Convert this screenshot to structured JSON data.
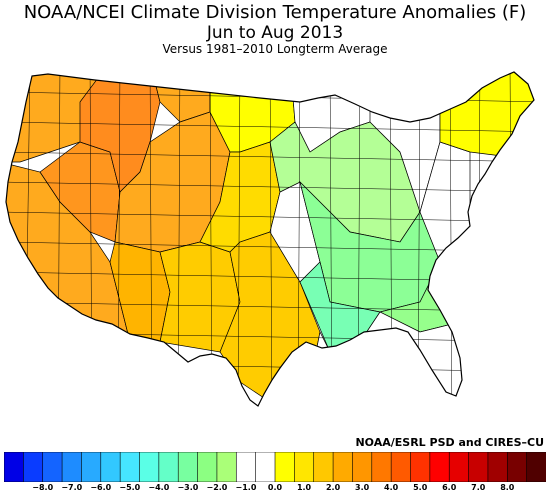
{
  "title": "NOAA/NCEI Climate Division Temperature Anomalies (F)",
  "period": "Jun to Aug 2013",
  "subtitle": "Versus 1981–2010 Longterm Average",
  "credit": "NOAA/ESRL PSD and CIRES–CU",
  "legend": {
    "ticks": [
      "−8.0",
      "−7.0",
      "−6.0",
      "−5.0",
      "−4.0",
      "−3.0",
      "−2.0",
      "−1.0",
      "0.0",
      "1.0",
      "2.0",
      "3.0",
      "4.0",
      "5.0",
      "6.0",
      "7.0",
      "8.0"
    ],
    "colors": [
      "#0000e6",
      "#0a3cff",
      "#1464ff",
      "#1e8cff",
      "#28aaff",
      "#32c8ff",
      "#46e6ff",
      "#5affe6",
      "#64ffc8",
      "#78ffa0",
      "#8cff82",
      "#aaff78",
      "#ffffff",
      "#ffffff",
      "#ffff00",
      "#ffe600",
      "#ffc800",
      "#ffaa00",
      "#ff9600",
      "#ff7800",
      "#ff5a00",
      "#ff3200",
      "#ff0000",
      "#e60000",
      "#c80000",
      "#a00000",
      "#780000",
      "#500000"
    ]
  },
  "map_colors": {
    "west_hot": "#ff8c1e",
    "west_warm": "#ffaa1e",
    "west_mild": "#ffcc00",
    "slight_warm": "#ffff00",
    "near_normal": "#ffffff",
    "slight_cool": "#b4ff96",
    "cool": "#8cff96",
    "cooler": "#78ffb4",
    "border": "#000000"
  }
}
